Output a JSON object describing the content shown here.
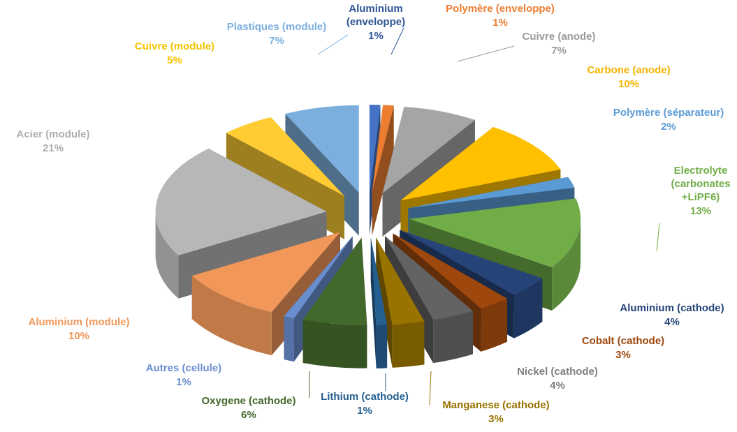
{
  "chart_data": {
    "type": "pie",
    "variant": "3d-exploded",
    "unit": "%",
    "slices": [
      {
        "label": "Aluminium (enveloppe)",
        "value": 1,
        "value_label": "1%",
        "color": "#4472C4",
        "label_color": "#2E5597"
      },
      {
        "label": "Polymère (enveloppe)",
        "value": 1,
        "value_label": "1%",
        "color": "#ED7D31",
        "label_color": "#ED7D31"
      },
      {
        "label": "Cuivre (anode)",
        "value": 7,
        "value_label": "7%",
        "color": "#A5A5A5",
        "label_color": "#9A9A9A"
      },
      {
        "label": "Carbone (anode)",
        "value": 10,
        "value_label": "10%",
        "color": "#FFC000",
        "label_color": "#F5B400"
      },
      {
        "label": "Polymère (séparateur)",
        "value": 2,
        "value_label": "2%",
        "color": "#5B9BD5",
        "label_color": "#5B9BD5"
      },
      {
        "label": "Electrolyte (carbonates +LiPF6)",
        "value": 13,
        "value_label": "13%",
        "color": "#70AD47",
        "label_color": "#70AD47"
      },
      {
        "label": "Aluminium (cathode)",
        "value": 4,
        "value_label": "4%",
        "color": "#264478",
        "label_color": "#264478"
      },
      {
        "label": "Cobalt (cathode)",
        "value": 3,
        "value_label": "3%",
        "color": "#9E480E",
        "label_color": "#9E480E"
      },
      {
        "label": "Nickel (cathode)",
        "value": 4,
        "value_label": "4%",
        "color": "#636363",
        "label_color": "#7F7F7F"
      },
      {
        "label": "Manganese (cathode)",
        "value": 3,
        "value_label": "3%",
        "color": "#997300",
        "label_color": "#997300"
      },
      {
        "label": "Lithium (cathode)",
        "value": 1,
        "value_label": "1%",
        "color": "#255E91",
        "label_color": "#255E91"
      },
      {
        "label": "Oxygene (cathode)",
        "value": 6,
        "value_label": "6%",
        "color": "#43682B",
        "label_color": "#43682B"
      },
      {
        "label": "Autres (cellule)",
        "value": 1,
        "value_label": "1%",
        "color": "#698ED0",
        "label_color": "#698ED0"
      },
      {
        "label": "Aluminium (module)",
        "value": 10,
        "value_label": "10%",
        "color": "#F1975A",
        "label_color": "#F1975A"
      },
      {
        "label": "Acier (module)",
        "value": 21,
        "value_label": "21%",
        "color": "#B7B7B7",
        "label_color": "#AFAFAF"
      },
      {
        "label": "Cuivre (module)",
        "value": 5,
        "value_label": "5%",
        "color": "#FFCD33",
        "label_color": "#F5C400"
      },
      {
        "label": "Plastiques (module)",
        "value": 7,
        "value_label": "7%",
        "color": "#7CAFDD",
        "label_color": "#7CAFDD"
      }
    ]
  }
}
